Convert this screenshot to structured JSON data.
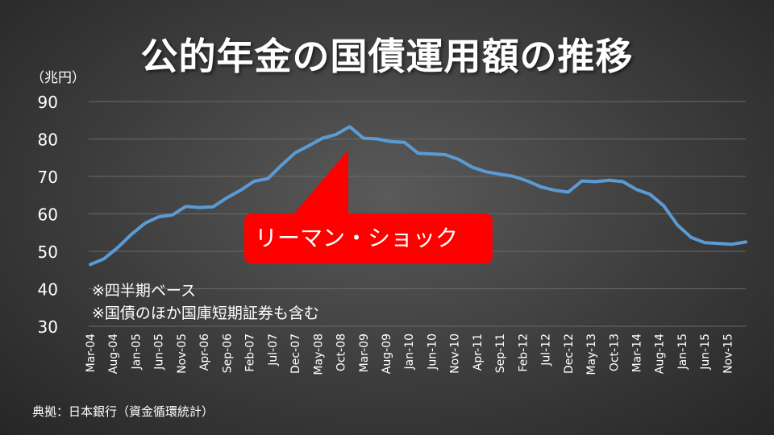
{
  "title": "公的年金の国債運用額の推移",
  "unit_label": "（兆円）",
  "notes": [
    "※四半期ベース",
    "※国債のほか国庫短期証券も含む"
  ],
  "source": "典拠：日本銀行（資金循環統計）",
  "callout": {
    "text": "リーマン・ショック",
    "color": "#ff0000"
  },
  "colors": {
    "line": "#5b9bd5",
    "grid": "#6a6a6a"
  },
  "chart_data": {
    "type": "line",
    "title": "公的年金の国債運用額の推移",
    "xlabel": "",
    "ylabel": "（兆円）",
    "ylim": [
      30,
      90
    ],
    "yticks": [
      30,
      40,
      50,
      60,
      70,
      80,
      90
    ],
    "grid": "horizontal",
    "x_tick_labels": [
      "Mar-04",
      "Aug-04",
      "Jan-05",
      "Jun-05",
      "Nov-05",
      "Apr-06",
      "Sep-06",
      "Feb-07",
      "Jul-07",
      "Dec-07",
      "May-08",
      "Oct-08",
      "Mar-09",
      "Aug-09",
      "Jan-10",
      "Jun-10",
      "Nov-10",
      "Apr-11",
      "Sep-11",
      "Feb-12",
      "Jul-12",
      "Dec-12",
      "May-13",
      "Oct-13",
      "Mar-14",
      "Aug-14",
      "Jan-15",
      "Jun-15",
      "Nov-15"
    ],
    "x": [
      "Mar-04",
      "Jun-04",
      "Sep-04",
      "Dec-04",
      "Mar-05",
      "Jun-05",
      "Sep-05",
      "Dec-05",
      "Mar-06",
      "Jun-06",
      "Sep-06",
      "Dec-06",
      "Mar-07",
      "Jun-07",
      "Sep-07",
      "Dec-07",
      "Mar-08",
      "Jun-08",
      "Sep-08",
      "Dec-08",
      "Mar-09",
      "Jun-09",
      "Sep-09",
      "Dec-09",
      "Mar-10",
      "Jun-10",
      "Sep-10",
      "Dec-10",
      "Mar-11",
      "Jun-11",
      "Sep-11",
      "Dec-11",
      "Mar-12",
      "Jun-12",
      "Sep-12",
      "Dec-12",
      "Mar-13",
      "Jun-13",
      "Sep-13",
      "Dec-13",
      "Mar-14",
      "Jun-14",
      "Sep-14",
      "Dec-14",
      "Mar-15",
      "Jun-15",
      "Sep-15",
      "Dec-15",
      "Mar-16"
    ],
    "series": [
      {
        "values": [
          46.5,
          48.0,
          51.0,
          54.5,
          57.5,
          59.2,
          59.7,
          62.0,
          61.7,
          61.9,
          64.3,
          66.3,
          68.7,
          69.4,
          73.0,
          76.3,
          78.2,
          80.2,
          81.2,
          83.3,
          80.2,
          80.0,
          79.3,
          79.1,
          76.2,
          76.0,
          75.8,
          74.5,
          72.4,
          71.2,
          70.6,
          70.0,
          68.8,
          67.2,
          66.3,
          65.8,
          68.8,
          68.6,
          69.0,
          68.6,
          66.5,
          65.2,
          62.1,
          57.0,
          53.7,
          52.3,
          52.1,
          51.9,
          52.5
        ]
      }
    ]
  }
}
